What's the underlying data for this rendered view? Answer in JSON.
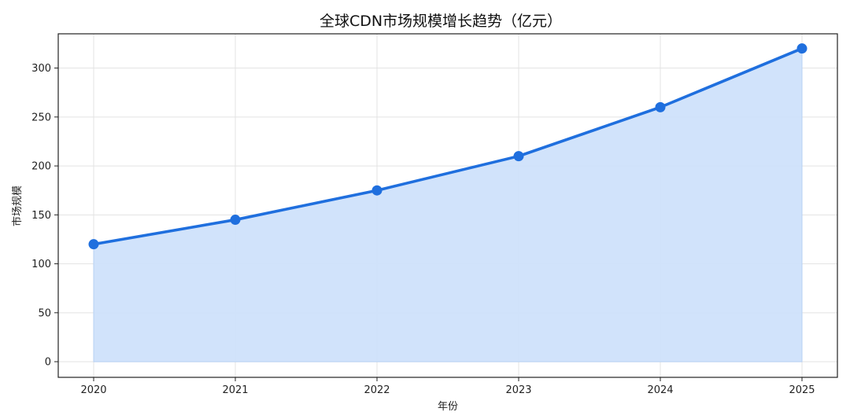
{
  "chart_data": {
    "type": "area",
    "title": "全球CDN市场规模增长趋势（亿元）",
    "xlabel": "年份",
    "ylabel": "市场规模",
    "x": [
      "2020",
      "2021",
      "2022",
      "2023",
      "2024",
      "2025"
    ],
    "series": [
      {
        "values": [
          120,
          145,
          175,
          210,
          260,
          320
        ]
      }
    ],
    "yticks": [
      0,
      50,
      100,
      150,
      200,
      250,
      300
    ],
    "ylim": [
      -16,
      335
    ],
    "grid": true,
    "colors": {
      "line": "#1f6fde",
      "fill": "#cfe2fb",
      "marker": "#1f6fde"
    }
  }
}
